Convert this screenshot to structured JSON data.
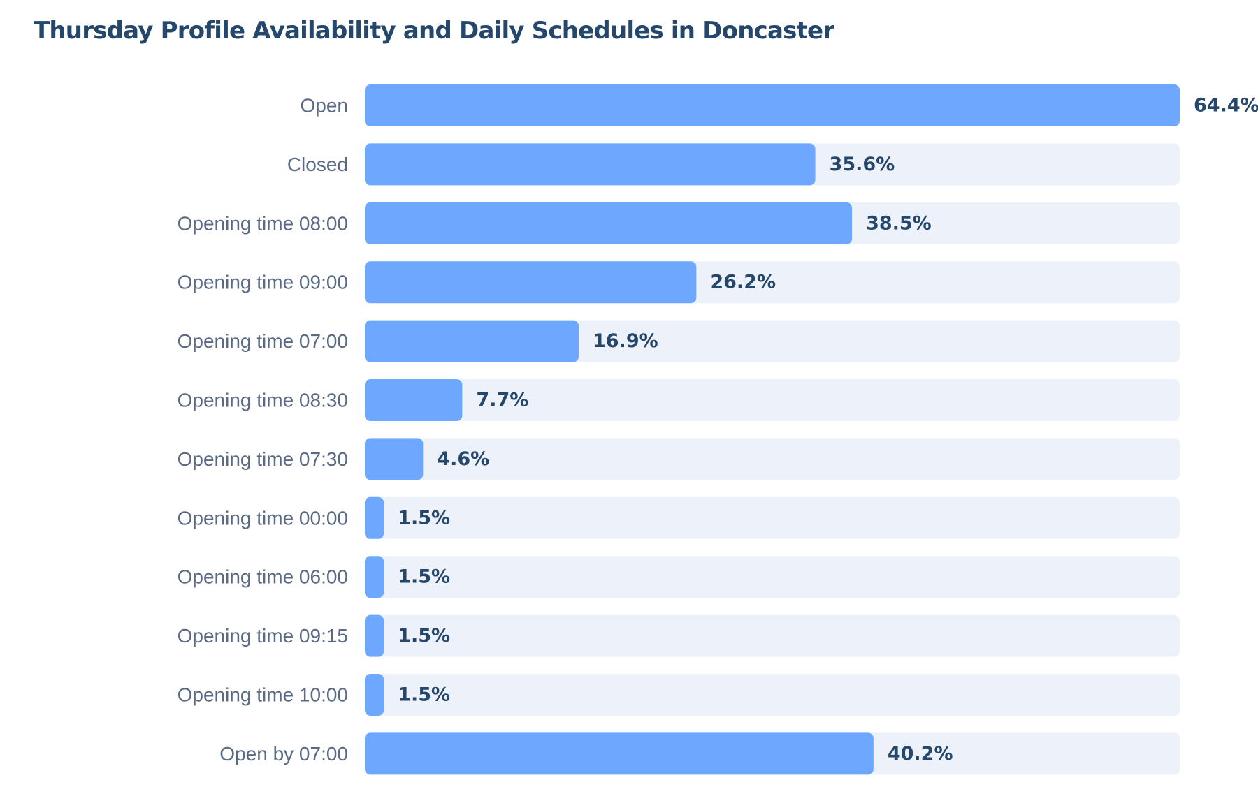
{
  "chart_data": {
    "type": "bar",
    "orientation": "horizontal",
    "title": "Thursday Profile Availability and Daily Schedules in Doncaster",
    "xlabel": "",
    "ylabel": "",
    "unit": "%",
    "xlim": [
      0,
      64.4
    ],
    "grid": false,
    "legend": "none",
    "categories": [
      "Open",
      "Closed",
      "Opening time 08:00",
      "Opening time 09:00",
      "Opening time 07:00",
      "Opening time 08:30",
      "Opening time 07:30",
      "Opening time 00:00",
      "Opening time 06:00",
      "Opening time 09:15",
      "Opening time 10:00",
      "Open by 07:00"
    ],
    "values": [
      64.4,
      35.6,
      38.5,
      26.2,
      16.9,
      7.7,
      4.6,
      1.5,
      1.5,
      1.5,
      1.5,
      40.2
    ],
    "value_labels": [
      "64.4%",
      "35.6%",
      "38.5%",
      "26.2%",
      "16.9%",
      "7.7%",
      "4.6%",
      "1.5%",
      "1.5%",
      "1.5%",
      "1.5%",
      "40.2%"
    ],
    "colors": {
      "bar": "#6ea8fe",
      "track": "#edf2fa",
      "title": "#24476b",
      "category_text": "#5a6a85",
      "value_text": "#24476b"
    }
  }
}
